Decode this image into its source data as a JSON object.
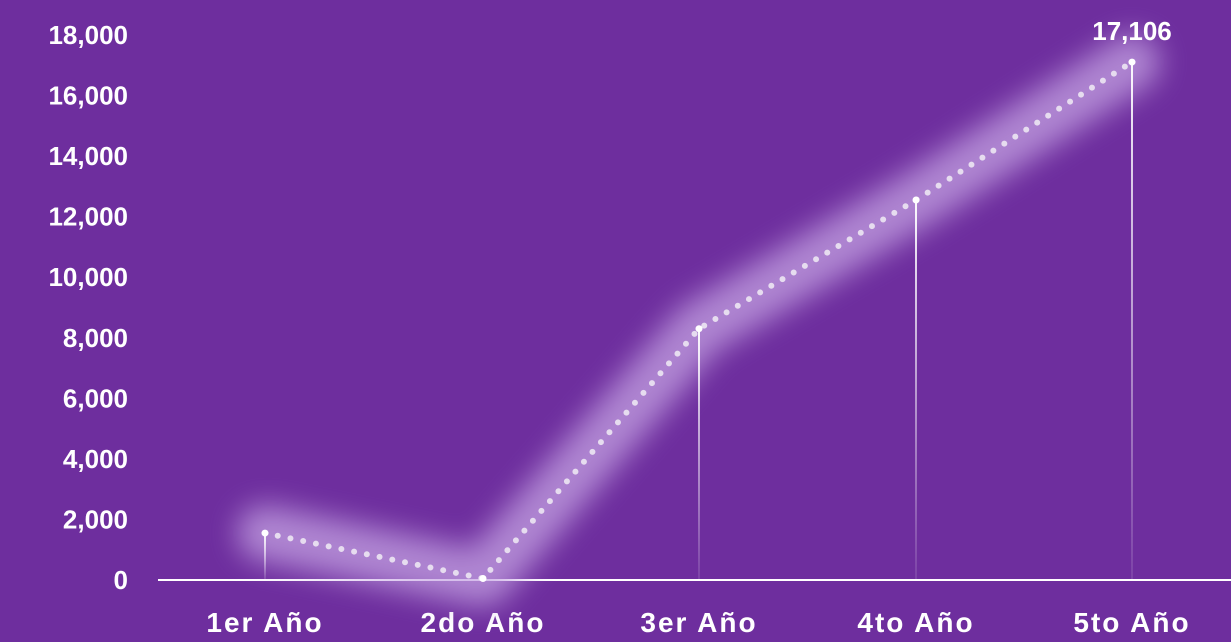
{
  "chart_data": {
    "type": "line",
    "categories": [
      "1er Año",
      "2do Año",
      "3er Año",
      "4to Año",
      "5to Año"
    ],
    "values": [
      1550,
      50,
      8300,
      12550,
      17106
    ],
    "value_labels": [
      "",
      "",
      "",
      "",
      "17,106"
    ],
    "y_ticks": [
      "0",
      "2,000",
      "4,000",
      "6,000",
      "8,000",
      "10,000",
      "12,000",
      "14,000",
      "16,000",
      "18,000"
    ],
    "ylim": [
      0,
      18000
    ],
    "grid": false,
    "line_style": "dotted",
    "colors": {
      "background": "#6e2e9e",
      "line": "#e6dcef",
      "glow": "#c5a3e3",
      "text": "#ffffff",
      "axis": "#ffffff"
    }
  }
}
